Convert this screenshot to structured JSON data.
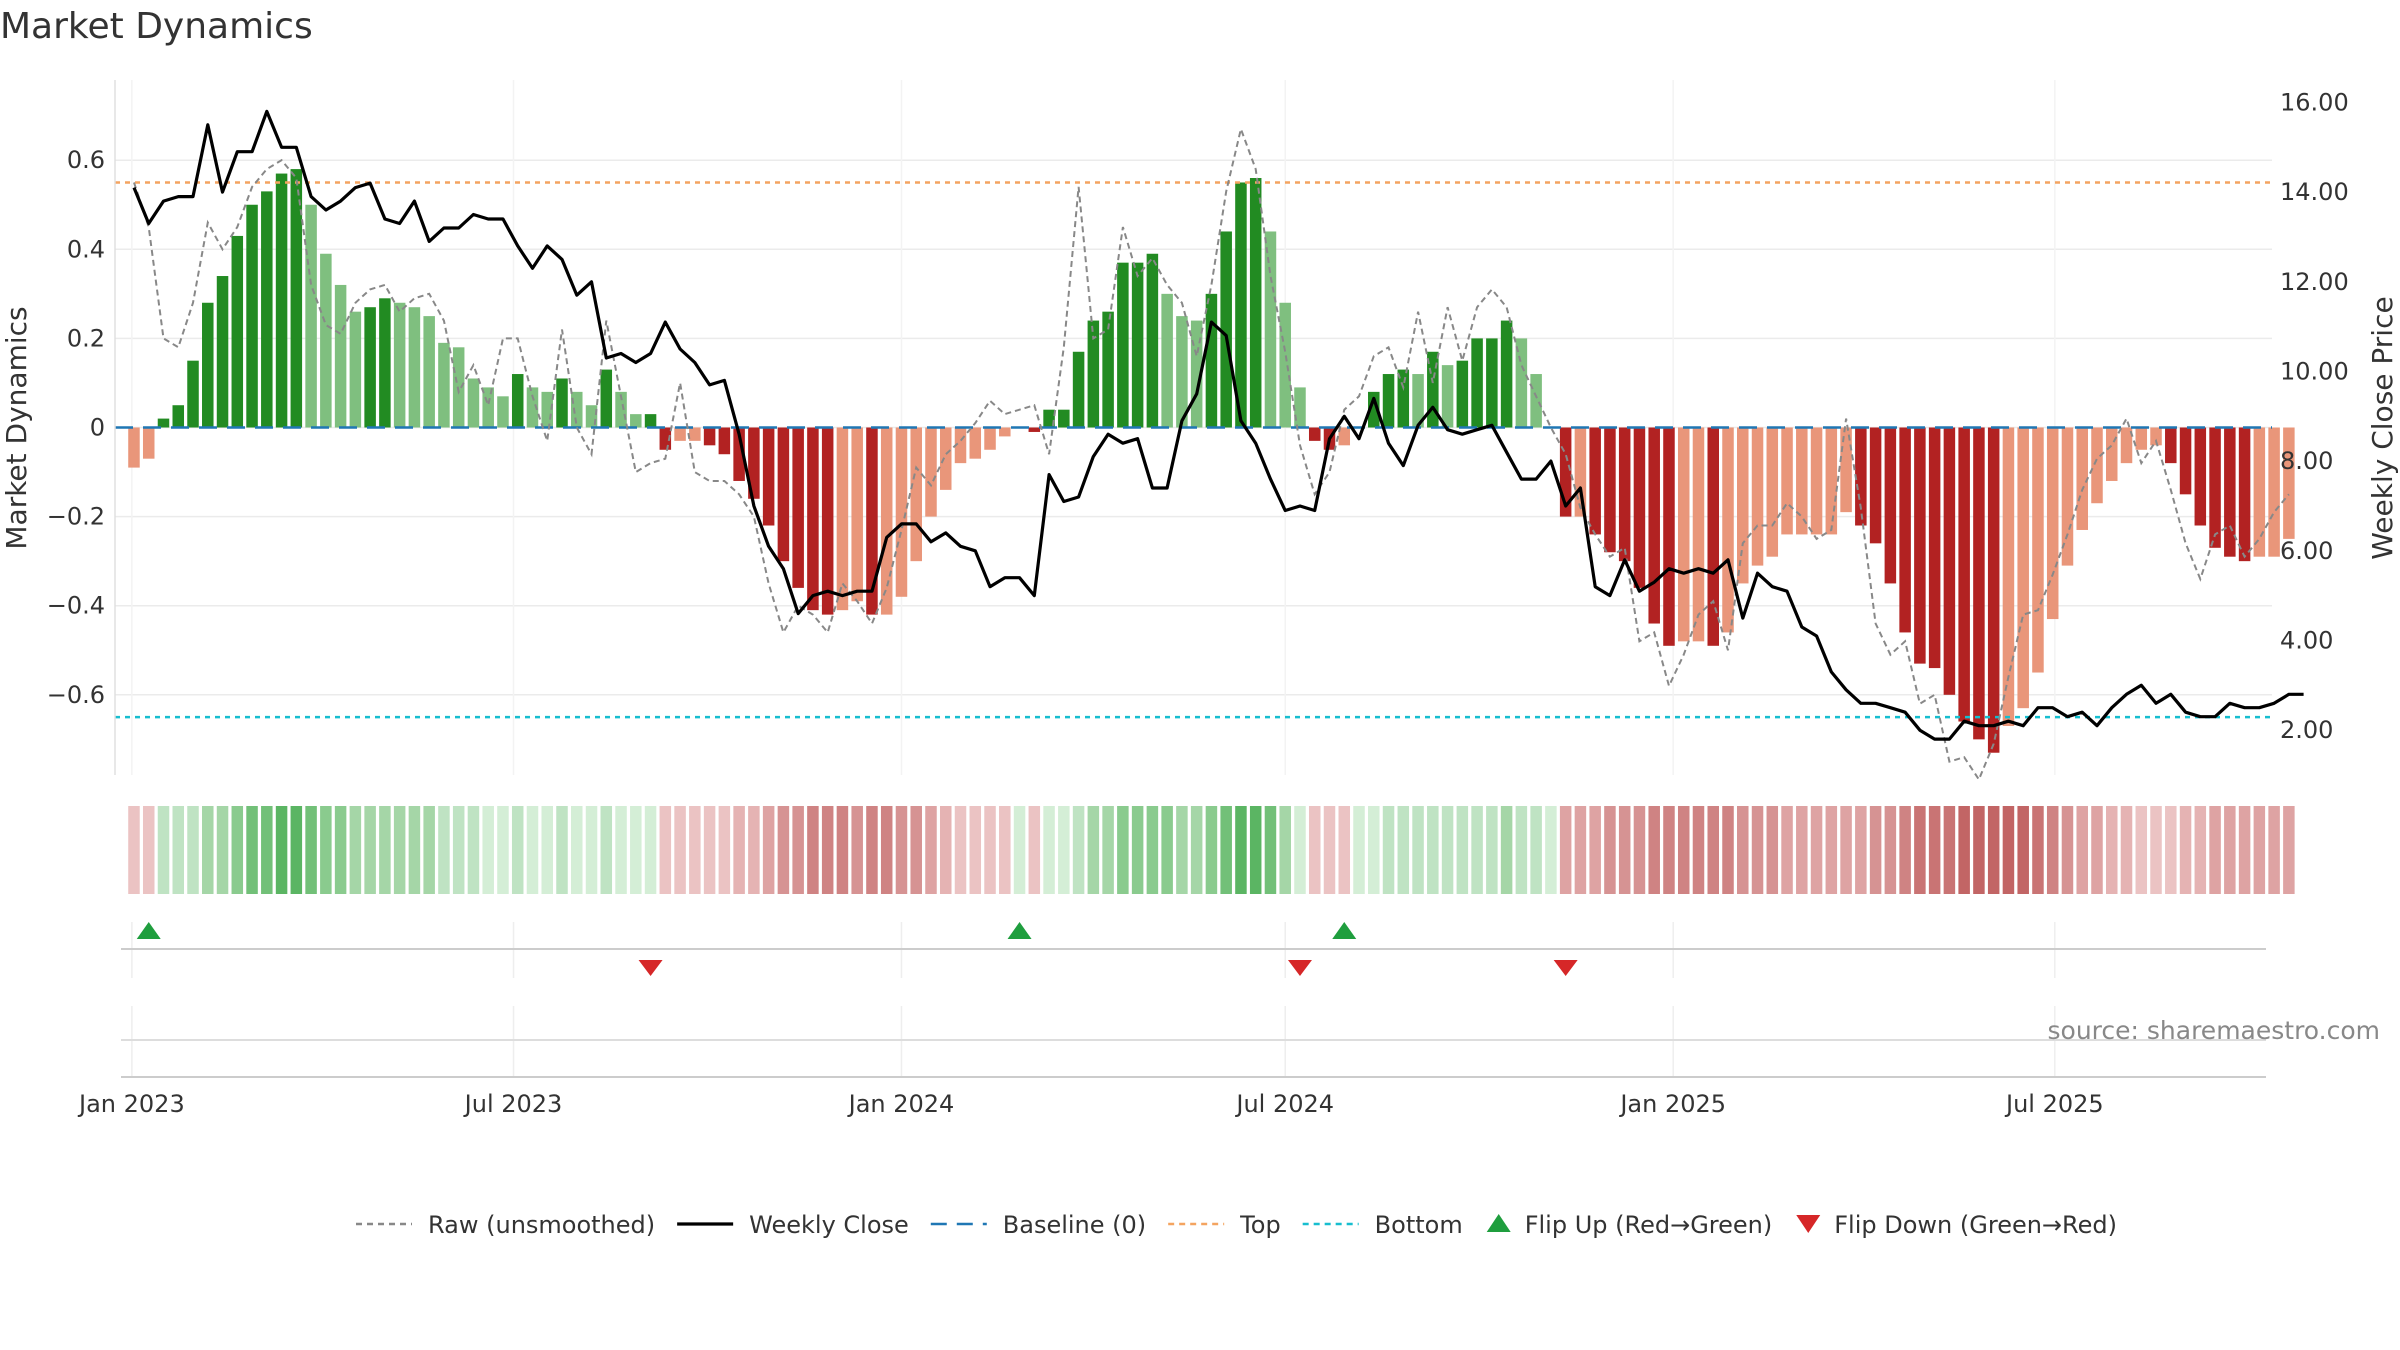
{
  "chart_data": {
    "type": "bar",
    "title": "Market Dynamics",
    "source_text": "source: sharemaestro.com",
    "ylabel_left": "Market Dynamics",
    "ylabel_right": "Weekly Close Price",
    "x_start": "2023-01-02",
    "x_end": "2025-10-06",
    "xlim": [
      "2022-12-24",
      "2025-10-12"
    ],
    "ylim_left": [
      -0.78,
      0.78
    ],
    "ylim_right": [
      1.0,
      16.5
    ],
    "left_ticks": [
      {
        "value": 0.6,
        "label": "0.6"
      },
      {
        "value": 0.4,
        "label": "0.4"
      },
      {
        "value": 0.2,
        "label": "0.2"
      },
      {
        "value": 0.0,
        "label": "0"
      },
      {
        "value": -0.2,
        "label": "−0.2"
      },
      {
        "value": -0.4,
        "label": "−0.4"
      },
      {
        "value": -0.6,
        "label": "−0.6"
      }
    ],
    "right_ticks": [
      {
        "value": 16,
        "label": "16.00"
      },
      {
        "value": 14,
        "label": "14.00"
      },
      {
        "value": 12,
        "label": "12.00"
      },
      {
        "value": 10,
        "label": "10.00"
      },
      {
        "value": 8,
        "label": "8.00"
      },
      {
        "value": 6,
        "label": "6.00"
      },
      {
        "value": 4,
        "label": "4.00"
      },
      {
        "value": 2,
        "label": "2.00"
      }
    ],
    "x_ticks": [
      {
        "date": "2023-01-01",
        "label": "Jan 2023"
      },
      {
        "date": "2023-07-01",
        "label": "Jul 2023"
      },
      {
        "date": "2024-01-01",
        "label": "Jan 2024"
      },
      {
        "date": "2024-07-01",
        "label": "Jul 2024"
      },
      {
        "date": "2025-01-01",
        "label": "Jan 2025"
      },
      {
        "date": "2025-07-01",
        "label": "Jul 2025"
      }
    ],
    "top_level": 0.55,
    "bottom_level": -0.65,
    "baseline": 0,
    "grid": true,
    "legend_position": "bottom",
    "colors": {
      "bull_strong": "#228b22",
      "bull_weak": "#7fbf7f",
      "bear_strong": "#b22222",
      "bear_weak": "#e9967a",
      "raw": "#888888",
      "close": "#000000",
      "baseline": "#1f77b4",
      "top": "#f4a460",
      "bottom": "#17becf",
      "flip_up": "#1f9e3e",
      "flip_down": "#d62728"
    },
    "series": [
      {
        "name": "Market Dynamics",
        "values": [
          -0.09,
          -0.07,
          0.02,
          0.05,
          0.15,
          0.28,
          0.34,
          0.43,
          0.5,
          0.53,
          0.57,
          0.58,
          0.5,
          0.39,
          0.32,
          0.26,
          0.27,
          0.29,
          0.28,
          0.27,
          0.25,
          0.19,
          0.18,
          0.11,
          0.09,
          0.07,
          0.12,
          0.09,
          0.08,
          0.11,
          0.08,
          0.05,
          0.13,
          0.08,
          0.03,
          0.03,
          -0.05,
          -0.03,
          -0.03,
          -0.04,
          -0.06,
          -0.12,
          -0.16,
          -0.22,
          -0.3,
          -0.36,
          -0.41,
          -0.42,
          -0.41,
          -0.39,
          -0.42,
          -0.42,
          -0.38,
          -0.3,
          -0.2,
          -0.14,
          -0.08,
          -0.07,
          -0.05,
          -0.02,
          -0.0,
          -0.01,
          0.04,
          0.04,
          0.17,
          0.24,
          0.26,
          0.37,
          0.37,
          0.39,
          0.3,
          0.25,
          0.24,
          0.3,
          0.44,
          0.55,
          0.56,
          0.44,
          0.28,
          0.09,
          -0.03,
          -0.05,
          -0.04,
          0.0,
          0.08,
          0.12,
          0.13,
          0.12,
          0.17,
          0.14,
          0.15,
          0.2,
          0.2,
          0.24,
          0.2,
          0.12,
          -0.0,
          -0.2,
          -0.2,
          -0.24,
          -0.28,
          -0.3,
          -0.36,
          -0.44,
          -0.49,
          -0.48,
          -0.48,
          -0.49,
          -0.46,
          -0.35,
          -0.31,
          -0.29,
          -0.24,
          -0.24,
          -0.24,
          -0.24,
          -0.19,
          -0.22,
          -0.26,
          -0.35,
          -0.46,
          -0.53,
          -0.54,
          -0.6,
          -0.66,
          -0.7,
          -0.73,
          -0.67,
          -0.63,
          -0.55,
          -0.43,
          -0.31,
          -0.23,
          -0.17,
          -0.12,
          -0.08,
          -0.05,
          -0.04,
          -0.08,
          -0.15,
          -0.22,
          -0.27,
          -0.29,
          -0.3,
          -0.29,
          -0.29,
          -0.25
        ]
      },
      {
        "name": "Raw (unsmoothed)",
        "values": [
          0.55,
          0.45,
          0.2,
          0.18,
          0.28,
          0.46,
          0.4,
          0.45,
          0.54,
          0.58,
          0.6,
          0.56,
          0.32,
          0.23,
          0.21,
          0.28,
          0.31,
          0.32,
          0.26,
          0.29,
          0.3,
          0.24,
          0.08,
          0.14,
          0.05,
          0.2,
          0.2,
          0.07,
          -0.03,
          0.22,
          0.0,
          -0.06,
          0.24,
          0.07,
          -0.1,
          -0.08,
          -0.07,
          0.1,
          -0.1,
          -0.12,
          -0.12,
          -0.15,
          -0.2,
          -0.35,
          -0.46,
          -0.4,
          -0.42,
          -0.46,
          -0.35,
          -0.39,
          -0.44,
          -0.36,
          -0.23,
          -0.09,
          -0.13,
          -0.06,
          -0.03,
          0.01,
          0.06,
          0.03,
          0.04,
          0.05,
          -0.06,
          0.18,
          0.54,
          0.2,
          0.22,
          0.45,
          0.34,
          0.38,
          0.32,
          0.28,
          0.16,
          0.32,
          0.53,
          0.67,
          0.58,
          0.34,
          0.17,
          -0.04,
          -0.15,
          -0.1,
          0.04,
          0.07,
          0.16,
          0.18,
          0.09,
          0.26,
          0.1,
          0.27,
          0.15,
          0.27,
          0.31,
          0.27,
          0.14,
          0.07,
          0.0,
          -0.06,
          -0.18,
          -0.24,
          -0.29,
          -0.27,
          -0.48,
          -0.46,
          -0.58,
          -0.51,
          -0.42,
          -0.39,
          -0.5,
          -0.26,
          -0.22,
          -0.22,
          -0.17,
          -0.2,
          -0.25,
          -0.23,
          0.02,
          -0.18,
          -0.44,
          -0.51,
          -0.48,
          -0.62,
          -0.6,
          -0.75,
          -0.74,
          -0.79,
          -0.71,
          -0.56,
          -0.42,
          -0.41,
          -0.33,
          -0.24,
          -0.14,
          -0.07,
          -0.04,
          0.02,
          -0.08,
          -0.03,
          -0.14,
          -0.26,
          -0.34,
          -0.24,
          -0.22,
          -0.29,
          -0.25,
          -0.19,
          -0.15
        ]
      },
      {
        "name": "Weekly Close",
        "values": [
          14.1,
          13.3,
          13.8,
          13.9,
          13.9,
          15.5,
          14.0,
          14.9,
          14.9,
          15.8,
          15.0,
          15.0,
          13.9,
          13.6,
          13.8,
          14.1,
          14.2,
          13.4,
          13.3,
          13.8,
          12.9,
          13.2,
          13.2,
          13.5,
          13.4,
          13.4,
          12.8,
          12.3,
          12.8,
          12.5,
          11.7,
          12.0,
          10.3,
          10.4,
          10.2,
          10.4,
          11.1,
          10.5,
          10.2,
          9.7,
          9.8,
          8.6,
          7.0,
          6.1,
          5.6,
          4.6,
          5.0,
          5.1,
          5.0,
          5.1,
          5.1,
          6.3,
          6.6,
          6.6,
          6.2,
          6.4,
          6.1,
          6.0,
          5.2,
          5.4,
          5.4,
          5.0,
          7.7,
          7.1,
          7.2,
          8.1,
          8.6,
          8.4,
          8.5,
          7.4,
          7.4,
          8.9,
          9.5,
          11.1,
          10.8,
          8.9,
          8.4,
          7.6,
          6.9,
          7.0,
          6.9,
          8.5,
          9.0,
          8.5,
          9.4,
          8.4,
          7.9,
          8.8,
          9.2,
          8.7,
          8.6,
          8.7,
          8.8,
          8.2,
          7.6,
          7.6,
          8.0,
          7.0,
          7.4,
          5.2,
          5.0,
          5.8,
          5.1,
          5.3,
          5.6,
          5.5,
          5.6,
          5.5,
          5.8,
          4.5,
          5.5,
          5.2,
          5.1,
          4.3,
          4.1,
          3.3,
          2.9,
          2.6,
          2.6,
          2.5,
          2.4,
          2.0,
          1.8,
          1.8,
          2.2,
          2.1,
          2.1,
          2.2,
          2.1,
          2.5,
          2.5,
          2.3,
          2.4,
          2.1,
          2.5,
          2.8,
          3.0,
          2.6,
          2.8,
          2.4,
          2.3,
          2.3,
          2.6,
          2.5,
          2.5,
          2.6,
          2.8,
          2.8
        ]
      }
    ],
    "regime_strength": [
      2,
      2,
      3,
      3,
      3,
      4,
      4,
      5,
      6,
      6,
      7,
      7,
      6,
      5,
      5,
      4,
      4,
      4,
      4,
      4,
      4,
      3,
      3,
      3,
      2,
      2,
      3,
      2,
      2,
      3,
      2,
      2,
      3,
      2,
      2,
      2,
      2,
      2,
      2,
      2,
      2,
      3,
      3,
      4,
      5,
      5,
      6,
      6,
      6,
      5,
      6,
      6,
      5,
      5,
      4,
      3,
      2,
      2,
      2,
      2,
      2,
      2,
      2,
      2,
      3,
      4,
      4,
      5,
      5,
      5,
      5,
      4,
      4,
      5,
      6,
      7,
      7,
      6,
      4,
      2,
      2,
      2,
      2,
      2,
      2,
      3,
      3,
      3,
      3,
      3,
      3,
      3,
      3,
      4,
      3,
      3,
      2,
      4,
      4,
      4,
      5,
      5,
      5,
      6,
      6,
      6,
      6,
      6,
      6,
      5,
      5,
      5,
      4,
      4,
      4,
      4,
      4,
      4,
      5,
      5,
      6,
      7,
      7,
      7,
      8,
      8,
      8,
      8,
      8,
      7,
      6,
      5,
      4,
      4,
      3,
      3,
      2,
      2,
      2,
      3,
      3,
      4,
      4,
      4,
      4,
      4,
      4,
      4
    ],
    "flip_up_weeks": [
      1,
      60,
      82
    ],
    "flip_down_weeks": [
      35,
      79,
      97
    ],
    "legend": [
      {
        "key": "raw",
        "label": "Raw (unsmoothed)"
      },
      {
        "key": "close",
        "label": "Weekly Close"
      },
      {
        "key": "baseline",
        "label": "Baseline (0)"
      },
      {
        "key": "top",
        "label": "Top"
      },
      {
        "key": "bottom",
        "label": "Bottom"
      },
      {
        "key": "flip_up",
        "label": "Flip Up (Red→Green)"
      },
      {
        "key": "flip_down",
        "label": "Flip Down (Green→Red)"
      }
    ]
  }
}
